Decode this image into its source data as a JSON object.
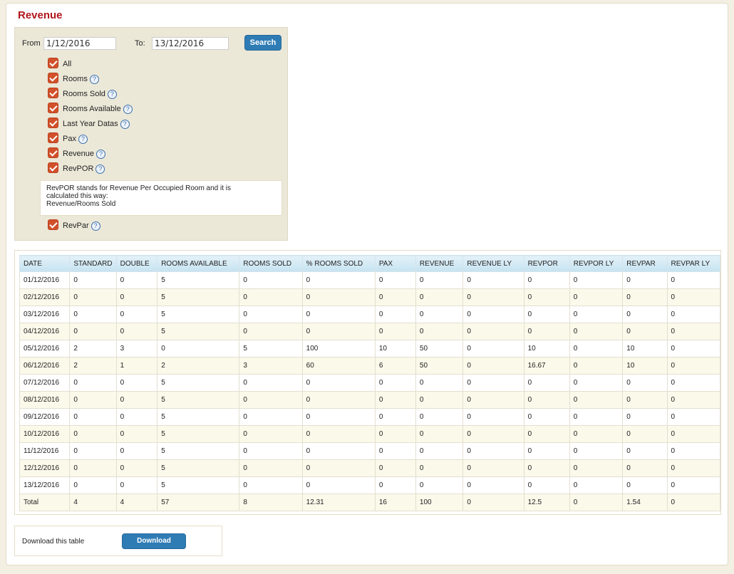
{
  "page": {
    "title": "Revenue"
  },
  "filters": {
    "from_label": "From",
    "from_value": "1/12/2016",
    "to_label": "To:",
    "to_value": "13/12/2016",
    "search_label": "Search",
    "checkboxes": [
      {
        "label": "All",
        "help": false,
        "checked": true
      },
      {
        "label": "Rooms",
        "help": true,
        "checked": true
      },
      {
        "label": "Rooms Sold",
        "help": true,
        "checked": true
      },
      {
        "label": "Rooms Available",
        "help": true,
        "checked": true
      },
      {
        "label": "Last Year Datas",
        "help": true,
        "checked": true
      },
      {
        "label": "Pax",
        "help": true,
        "checked": true
      },
      {
        "label": "Revenue",
        "help": true,
        "checked": true
      },
      {
        "label": "RevPOR",
        "help": true,
        "checked": true
      },
      {
        "label": "RevPar",
        "help": true,
        "checked": true
      }
    ],
    "help_icon": "question-circle-icon",
    "tooltip_lines": [
      "RevPOR stands for Revenue Per Occupied Room and it is",
      "calculated this way:",
      "Revenue/Rooms Sold"
    ]
  },
  "table": {
    "headers": [
      "DATE",
      "STANDARD",
      "DOUBLE",
      "ROOMS AVAILABLE",
      "ROOMS SOLD",
      "% ROOMS SOLD",
      "PAX",
      "REVENUE",
      "REVENUE LY",
      "REVPOR",
      "REVPOR LY",
      "REVPAR",
      "REVPAR LY"
    ],
    "rows": [
      [
        "01/12/2016",
        "0",
        "0",
        "5",
        "0",
        "0",
        "0",
        "0",
        "0",
        "0",
        "0",
        "0",
        "0"
      ],
      [
        "02/12/2016",
        "0",
        "0",
        "5",
        "0",
        "0",
        "0",
        "0",
        "0",
        "0",
        "0",
        "0",
        "0"
      ],
      [
        "03/12/2016",
        "0",
        "0",
        "5",
        "0",
        "0",
        "0",
        "0",
        "0",
        "0",
        "0",
        "0",
        "0"
      ],
      [
        "04/12/2016",
        "0",
        "0",
        "5",
        "0",
        "0",
        "0",
        "0",
        "0",
        "0",
        "0",
        "0",
        "0"
      ],
      [
        "05/12/2016",
        "2",
        "3",
        "0",
        "5",
        "100",
        "10",
        "50",
        "0",
        "10",
        "0",
        "10",
        "0"
      ],
      [
        "06/12/2016",
        "2",
        "1",
        "2",
        "3",
        "60",
        "6",
        "50",
        "0",
        "16.67",
        "0",
        "10",
        "0"
      ],
      [
        "07/12/2016",
        "0",
        "0",
        "5",
        "0",
        "0",
        "0",
        "0",
        "0",
        "0",
        "0",
        "0",
        "0"
      ],
      [
        "08/12/2016",
        "0",
        "0",
        "5",
        "0",
        "0",
        "0",
        "0",
        "0",
        "0",
        "0",
        "0",
        "0"
      ],
      [
        "09/12/2016",
        "0",
        "0",
        "5",
        "0",
        "0",
        "0",
        "0",
        "0",
        "0",
        "0",
        "0",
        "0"
      ],
      [
        "10/12/2016",
        "0",
        "0",
        "5",
        "0",
        "0",
        "0",
        "0",
        "0",
        "0",
        "0",
        "0",
        "0"
      ],
      [
        "11/12/2016",
        "0",
        "0",
        "5",
        "0",
        "0",
        "0",
        "0",
        "0",
        "0",
        "0",
        "0",
        "0"
      ],
      [
        "12/12/2016",
        "0",
        "0",
        "5",
        "0",
        "0",
        "0",
        "0",
        "0",
        "0",
        "0",
        "0",
        "0"
      ],
      [
        "13/12/2016",
        "0",
        "0",
        "5",
        "0",
        "0",
        "0",
        "0",
        "0",
        "0",
        "0",
        "0",
        "0"
      ]
    ],
    "total": [
      "Total",
      "4",
      "4",
      "57",
      "8",
      "12.31",
      "16",
      "100",
      "0",
      "12.5",
      "0",
      "1.54",
      "0"
    ]
  },
  "download": {
    "label": "Download this table",
    "button": "Download"
  },
  "colors": {
    "title": "#b0151b",
    "button": "#2f7cb5",
    "checkbox": "#d2512a",
    "header": "#c5e3f1"
  }
}
